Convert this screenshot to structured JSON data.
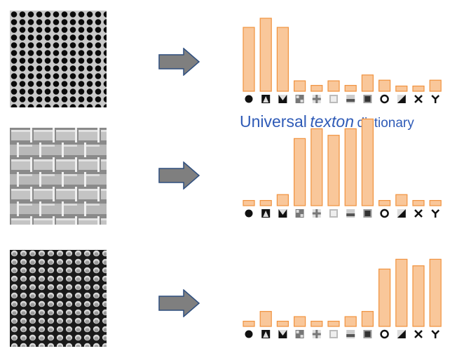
{
  "caption": {
    "word1": "Universal",
    "word2": "texton",
    "word3": "dictionary"
  },
  "colors": {
    "bar_fill": "#f9c79a",
    "bar_edge": "#f0923e",
    "arrow_fill": "#7f7f7f",
    "arrow_edge": "#2f4f7f",
    "caption": "#2f5bb7"
  },
  "textons": [
    "dot",
    "blob-diagonal",
    "corner-blob",
    "grid-patch",
    "cross-patch",
    "bright-square",
    "bar-patch",
    "dark-square",
    "ring",
    "edge-patch",
    "x-shape",
    "y-shape"
  ],
  "rows": [
    {
      "texture": "dotted-holes",
      "histogram": [
        98,
        112,
        98,
        16,
        9,
        16,
        9,
        25,
        17,
        8,
        8,
        17
      ]
    },
    {
      "texture": "brick-tiles",
      "histogram": [
        8,
        8,
        17,
        103,
        118,
        108,
        118,
        133,
        8,
        17,
        8,
        8
      ]
    },
    {
      "texture": "honeycomb-scales",
      "histogram": [
        8,
        23,
        8,
        15,
        8,
        8,
        15,
        23,
        88,
        103,
        93,
        103
      ]
    }
  ]
}
